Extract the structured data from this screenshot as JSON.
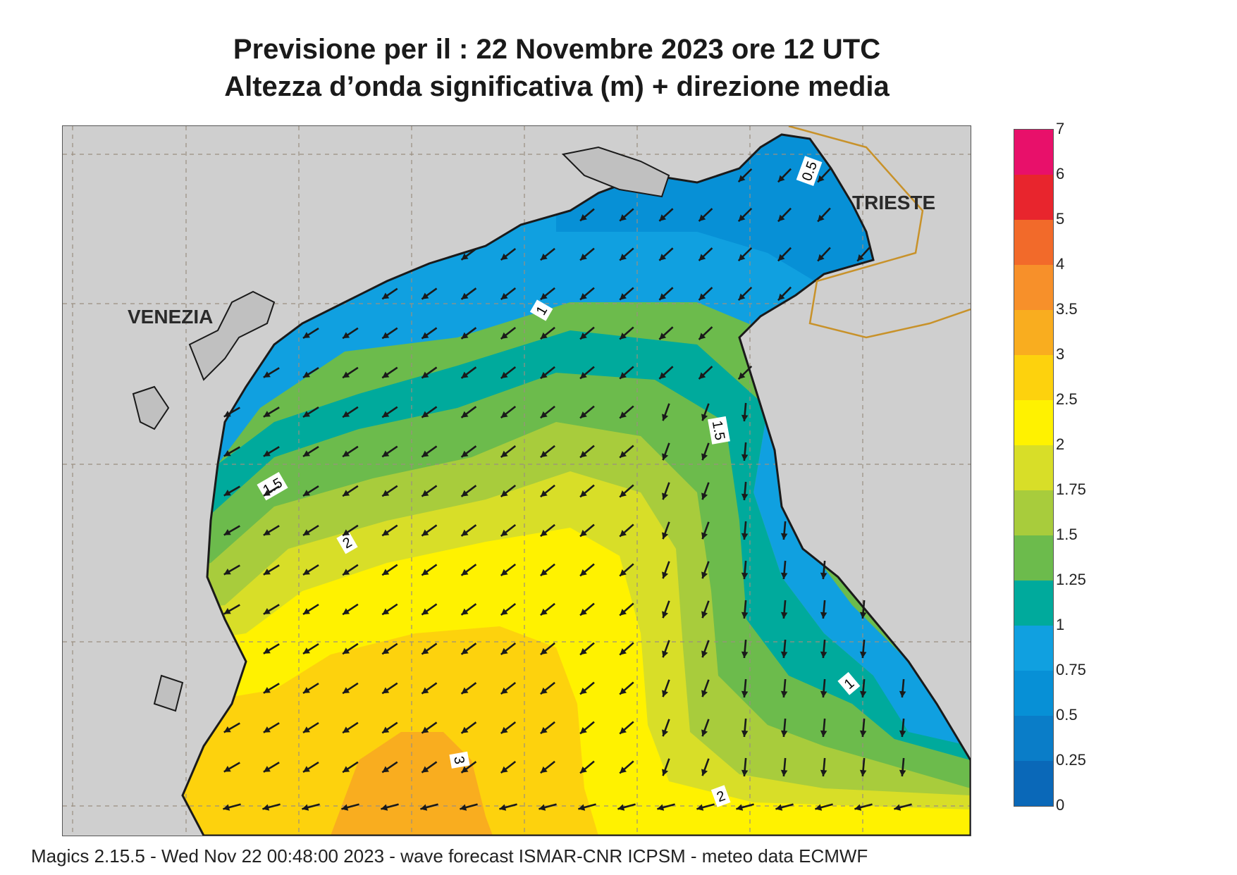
{
  "title": {
    "line1": "Previsione per il  :  22 Novembre  2023   ore 12 UTC",
    "line2": "Altezza d’onda significativa (m) + direzione media"
  },
  "map": {
    "cities": [
      {
        "name": "VENEZIA"
      },
      {
        "name": "TRIESTE"
      }
    ],
    "contour_labels": [
      "0.5",
      "1",
      "1.5",
      "1.5",
      "2",
      "3",
      "1",
      "2"
    ],
    "colors": {
      "land": "#cfcfcf",
      "coast": "#1a1a1a",
      "border": "#c8922a",
      "grid": "#9a8f80",
      "arrow": "#1a1a1a"
    },
    "arrow_direction": "south-west dominant, turning south in the eastern basin"
  },
  "colorbar": {
    "levels": [
      {
        "label": "7",
        "color": "#e8106a"
      },
      {
        "label": "6",
        "color": "#e8252d"
      },
      {
        "label": "5",
        "color": "#f26a2a"
      },
      {
        "label": "4",
        "color": "#f7902a"
      },
      {
        "label": "3.5",
        "color": "#f9ad1f"
      },
      {
        "label": "3",
        "color": "#fdd20d"
      },
      {
        "label": "2.5",
        "color": "#fff200"
      },
      {
        "label": "2",
        "color": "#d8de28"
      },
      {
        "label": "1.75",
        "color": "#a8cc3c"
      },
      {
        "label": "1.5",
        "color": "#6cbb4c"
      },
      {
        "label": "1.25",
        "color": "#00aa9c"
      },
      {
        "label": "1",
        "color": "#10a0e0"
      },
      {
        "label": "0.75",
        "color": "#0790d6"
      },
      {
        "label": "0.5",
        "color": "#0a7dc8"
      },
      {
        "label": "0.25",
        "color": "#0a68b8"
      },
      {
        "label": "0",
        "color": null
      }
    ]
  },
  "footer": {
    "text": "Magics 2.15.5 - Wed Nov 22 00:48:00 2023 - wave forecast  ISMAR-CNR  ICPSM - meteo data    ECMWF"
  }
}
